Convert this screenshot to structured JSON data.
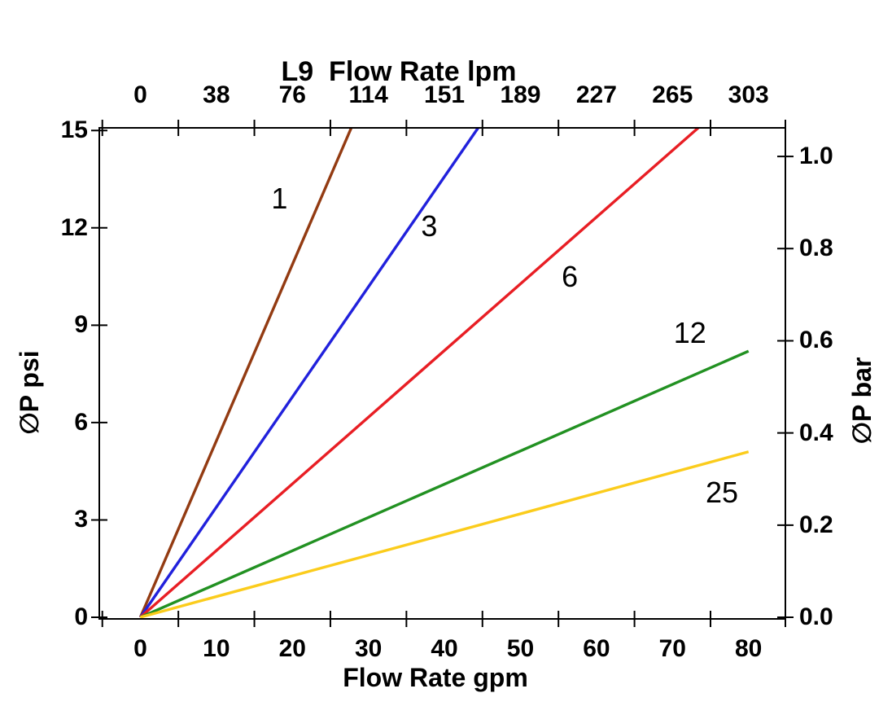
{
  "chart_data": {
    "type": "line",
    "title": "L9  Flow Rate lpm",
    "background": "#FFFFFF",
    "axis_color": "#000000",
    "grid": false,
    "legend_position": "inline-labels",
    "axes": {
      "top": {
        "title": "L9  Flow Rate lpm",
        "tick_labels": [
          "0",
          "38",
          "76",
          "114",
          "151",
          "189",
          "227",
          "265",
          "303"
        ],
        "tick_positions_gpm": [
          0,
          10,
          20,
          30,
          40,
          50,
          60,
          70,
          80
        ]
      },
      "bottom": {
        "title": "Flow Rate gpm",
        "tick_labels": [
          "0",
          "10",
          "20",
          "30",
          "40",
          "50",
          "60",
          "70",
          "80"
        ],
        "tick_positions_gpm": [
          0,
          10,
          20,
          30,
          40,
          50,
          60,
          70,
          80
        ]
      },
      "left": {
        "title": "∅P psi",
        "tick_labels": [
          "0",
          "3",
          "6",
          "9",
          "12",
          "15"
        ],
        "tick_values_psi": [
          0,
          3,
          6,
          9,
          12,
          15
        ],
        "range_psi": [
          0,
          15
        ]
      },
      "right": {
        "title": "∅P bar",
        "tick_labels": [
          "0.0",
          "0.2",
          "0.4",
          "0.6",
          "0.8",
          "1.0"
        ],
        "tick_values_bar": [
          0,
          0.2,
          0.4,
          0.6,
          0.8,
          1.0
        ]
      }
    },
    "minor_tick_positions_gpm": [
      -5,
      5,
      15,
      25,
      35,
      45,
      55,
      65,
      75,
      85
    ],
    "x_range_gpm": [
      -5.4,
      84.85
    ],
    "y_range_psi": [
      -0.05,
      15.08
    ],
    "psi_per_bar": 14.2,
    "series": [
      {
        "label": "1",
        "color": "#933B12",
        "points": [
          [
            0,
            0
          ],
          [
            27.6,
            15
          ]
        ],
        "label_pos": [
          18.3,
          12.9
        ]
      },
      {
        "label": "3",
        "color": "#2121DC",
        "points": [
          [
            0,
            0
          ],
          [
            44.2,
            15
          ]
        ],
        "label_pos": [
          38.0,
          12.05
        ]
      },
      {
        "label": "6",
        "color": "#E81E24",
        "points": [
          [
            0,
            0
          ],
          [
            73.0,
            15
          ]
        ],
        "label_pos": [
          56.5,
          10.5
        ]
      },
      {
        "label": "12",
        "color": "#229122",
        "points": [
          [
            0,
            0
          ],
          [
            80.0,
            8.2
          ]
        ],
        "label_pos": [
          72.3,
          8.75
        ]
      },
      {
        "label": "25",
        "color": "#FBCC1C",
        "points": [
          [
            0,
            0
          ],
          [
            80.0,
            5.1
          ]
        ],
        "label_pos": [
          76.5,
          3.85
        ]
      }
    ]
  }
}
